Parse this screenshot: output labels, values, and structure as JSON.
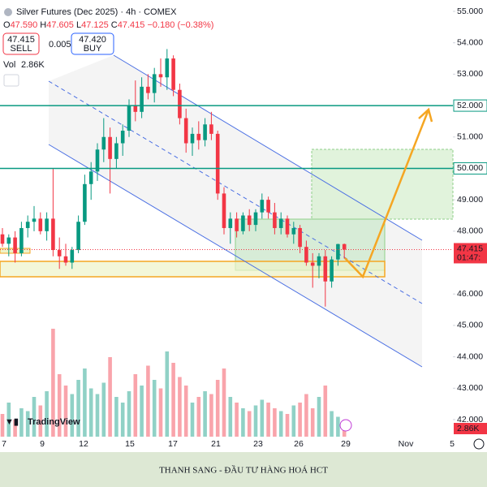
{
  "header": {
    "title": "Silver Futures (Dec 2025) · 4h · COMEX",
    "o_label": "O",
    "open": "47.590",
    "h_label": "H",
    "high": "47.605",
    "l_label": "L",
    "low": "47.125",
    "c_label": "C",
    "close": "47.415",
    "change": "−0.180 (−0.38%)",
    "sell_price": "47.415",
    "sell": "SELL",
    "spread": "0.005",
    "buy_price": "47.420",
    "buy": "BUY",
    "vol_label": "Vol",
    "vol_value": "2.86K"
  },
  "chart_data": {
    "type": "candlestick",
    "candles": {
      "open": [
        47.9,
        47.6,
        47.8,
        47.3,
        48.1,
        48.3,
        48.4,
        48.0,
        48.4,
        47.4,
        47.2,
        47.0,
        47.4,
        48.3,
        49.5,
        49.9,
        50.6,
        51.0,
        50.3,
        50.8,
        51.2,
        52.0,
        51.8,
        52.6,
        52.4,
        53.0,
        52.9,
        53.5,
        52.5,
        51.6,
        50.8,
        51.1,
        50.9,
        51.4,
        51.1,
        49.2,
        48.1,
        48.4,
        48.0,
        48.5,
        48.2,
        48.6,
        49.0,
        48.6,
        48.1,
        48.4,
        47.9,
        48.1,
        47.5,
        47.0,
        46.9,
        47.2,
        46.4,
        47.1,
        47.59
      ],
      "high": [
        48.1,
        47.9,
        48.0,
        48.3,
        48.5,
        48.8,
        48.6,
        48.6,
        50.0,
        47.8,
        47.6,
        47.5,
        48.5,
        49.8,
        50.2,
        50.8,
        51.6,
        51.3,
        51.0,
        51.4,
        52.2,
        52.8,
        52.9,
        53.0,
        53.2,
        53.5,
        53.8,
        53.6,
        52.7,
        51.9,
        51.3,
        51.5,
        51.6,
        51.8,
        51.2,
        49.4,
        48.6,
        48.6,
        48.6,
        48.7,
        48.7,
        49.2,
        49.1,
        48.9,
        48.6,
        48.5,
        48.3,
        48.2,
        47.7,
        47.3,
        47.3,
        47.4,
        47.2,
        47.6,
        47.605
      ],
      "low": [
        47.5,
        47.2,
        47.0,
        47.2,
        47.8,
        48.0,
        47.9,
        47.7,
        47.2,
        46.8,
        46.9,
        46.8,
        47.3,
        48.2,
        49.0,
        49.6,
        50.2,
        49.2,
        50.0,
        50.4,
        51.0,
        51.5,
        51.6,
        52.2,
        52.1,
        52.6,
        52.5,
        52.3,
        51.4,
        50.5,
        50.4,
        50.6,
        50.7,
        50.9,
        49.0,
        47.9,
        47.6,
        47.8,
        47.9,
        48.0,
        48.0,
        48.4,
        48.4,
        47.9,
        47.9,
        47.8,
        47.6,
        47.3,
        46.9,
        46.2,
        46.5,
        45.6,
        46.2,
        46.9,
        47.125
      ],
      "close": [
        47.6,
        47.8,
        47.3,
        48.1,
        48.3,
        48.4,
        48.0,
        48.4,
        47.4,
        47.2,
        47.0,
        47.4,
        48.3,
        49.5,
        49.9,
        50.6,
        51.0,
        50.3,
        50.8,
        51.2,
        52.0,
        51.8,
        52.6,
        52.4,
        53.0,
        52.9,
        53.5,
        52.5,
        51.6,
        50.8,
        51.1,
        50.9,
        51.4,
        51.1,
        49.2,
        48.1,
        48.4,
        48.0,
        48.5,
        48.2,
        48.6,
        49.0,
        48.6,
        48.1,
        48.4,
        47.9,
        48.1,
        47.5,
        47.0,
        46.9,
        47.2,
        46.4,
        47.1,
        47.59,
        47.415
      ]
    },
    "up_color": "#089981",
    "down_color": "#f23645",
    "volume": {
      "values": [
        8,
        12,
        6,
        10,
        9,
        14,
        11,
        16,
        38,
        22,
        18,
        15,
        20,
        24,
        17,
        15,
        19,
        28,
        14,
        12,
        16,
        22,
        18,
        25,
        20,
        17,
        30,
        26,
        21,
        18,
        12,
        14,
        16,
        15,
        20,
        24,
        14,
        12,
        10,
        9,
        11,
        13,
        12,
        10,
        9,
        8,
        11,
        12,
        15,
        10,
        14,
        18,
        9,
        7,
        2.86
      ]
    },
    "ylim": [
      41.405,
      55.362
    ],
    "yticks": [
      {
        "value": 55,
        "label": "55.000"
      },
      {
        "value": 54,
        "label": "54.000"
      },
      {
        "value": 53,
        "label": "53.000"
      },
      {
        "value": 51,
        "label": "51.000"
      },
      {
        "value": 49,
        "label": "49.000"
      },
      {
        "value": 48,
        "label": "48.000"
      },
      {
        "value": 46,
        "label": "46.000"
      },
      {
        "value": 45,
        "label": "45.000"
      },
      {
        "value": 44,
        "label": "44.000"
      },
      {
        "value": 43,
        "label": "43.000"
      },
      {
        "value": 42,
        "label": "42.000"
      }
    ],
    "x_labels": [
      "7",
      "9",
      "12",
      "15",
      "17",
      "21",
      "23",
      "26",
      "29",
      "Nov",
      "5"
    ],
    "levels": [
      {
        "value": 52,
        "label": "52.000",
        "color": "#089981"
      },
      {
        "value": 50,
        "label": "50.000",
        "color": "#089981"
      }
    ],
    "last_price": {
      "value": 47.415,
      "label": "47.415",
      "countdown": "01:47:",
      "color": "#f23645"
    }
  },
  "footer": {
    "brand": "TradingView",
    "banner": "THANH SANG - ĐẦU TƯ HÀNG HOÁ HCT"
  }
}
